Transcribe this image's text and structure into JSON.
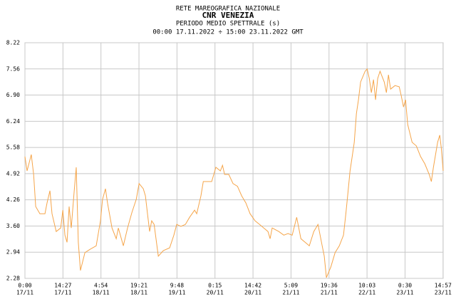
{
  "chart_data": {
    "type": "line",
    "header": "RETE MAREOGRAFICA NAZIONALE",
    "title": "CNR VENEZIA",
    "subtitle": "PERIODO MEDIO SPETTRALE (s)",
    "period": "00:00 17.11.2022 ÷ 15:00 23.11.2022 GMT",
    "xlim": [
      0,
      159
    ],
    "xticks": [
      {
        "value": 0,
        "label": [
          "0:00",
          "17/11"
        ]
      },
      {
        "value": 14.45,
        "label": [
          "14:27",
          "17/11"
        ]
      },
      {
        "value": 28.9,
        "label": [
          "4:54",
          "18/11"
        ]
      },
      {
        "value": 43.35,
        "label": [
          "19:21",
          "18/11"
        ]
      },
      {
        "value": 57.8,
        "label": [
          "9:48",
          "19/11"
        ]
      },
      {
        "value": 72.25,
        "label": [
          "0:15",
          "20/11"
        ]
      },
      {
        "value": 86.7,
        "label": [
          "14:42",
          "20/11"
        ]
      },
      {
        "value": 101.15,
        "label": [
          "5:09",
          "21/11"
        ]
      },
      {
        "value": 115.6,
        "label": [
          "19:36",
          "21/11"
        ]
      },
      {
        "value": 130.05,
        "label": [
          "10:03",
          "22/11"
        ]
      },
      {
        "value": 144.5,
        "label": [
          "0:30",
          "23/11"
        ]
      },
      {
        "value": 158.95,
        "label": [
          "14:57",
          "23/11"
        ]
      }
    ],
    "ylim": [
      2.28,
      8.22
    ],
    "yticks": [
      2.28,
      2.94,
      {
        "value": 3.6,
        "label": "3.60"
      },
      4.26,
      4.92,
      5.58,
      6.24,
      {
        "value": 6.9,
        "label": "6.90"
      },
      7.56,
      8.22
    ],
    "grid": true,
    "series": [
      {
        "color": "#f5a54a",
        "x": [
          0.0,
          0.8,
          2.4,
          3.3,
          4.1,
          5.7,
          7.6,
          8.4,
          9.5,
          10.3,
          11.9,
          13.6,
          14.4,
          15.2,
          16.0,
          16.8,
          17.6,
          18.7,
          19.5,
          20.3,
          21.1,
          22.8,
          24.7,
          27.1,
          28.7,
          29.5,
          30.6,
          31.4,
          33.1,
          34.7,
          35.5,
          37.4,
          39.0,
          40.7,
          42.3,
          43.4,
          45.0,
          45.8,
          46.6,
          47.4,
          48.2,
          49.1,
          50.7,
          52.6,
          55.0,
          56.6,
          57.7,
          59.3,
          61.0,
          62.6,
          64.5,
          65.3,
          66.9,
          67.8,
          69.4,
          71.0,
          72.6,
          74.3,
          75.1,
          75.9,
          77.5,
          79.1,
          80.8,
          82.4,
          84.0,
          85.6,
          87.5,
          89.2,
          90.8,
          92.4,
          93.2,
          94.0,
          96.5,
          98.4,
          100.0,
          101.6,
          103.3,
          104.9,
          106.5,
          108.1,
          109.8,
          111.4,
          113.0,
          113.8,
          114.6,
          116.3,
          117.9,
          119.5,
          121.1,
          122.0,
          122.8,
          123.6,
          124.4,
          125.2,
          126.0,
          126.8,
          127.6,
          129.3,
          130.1,
          130.9,
          131.7,
          132.5,
          133.3,
          134.1,
          135.0,
          136.6,
          137.4,
          138.2,
          139.0,
          140.7,
          142.3,
          143.1,
          143.9,
          144.7,
          145.5,
          147.2,
          148.8,
          150.4,
          152.0,
          153.7,
          154.5,
          155.3,
          156.9,
          157.7,
          158.3,
          159.0
        ],
        "values": [
          5.35,
          4.99,
          5.4,
          4.9,
          4.09,
          3.91,
          3.91,
          4.18,
          4.49,
          3.91,
          3.46,
          3.55,
          4.0,
          3.37,
          3.19,
          4.09,
          3.55,
          4.45,
          5.08,
          3.19,
          2.48,
          2.93,
          3.01,
          3.1,
          3.73,
          4.27,
          4.54,
          4.18,
          3.55,
          3.28,
          3.55,
          3.1,
          3.55,
          3.95,
          4.27,
          4.67,
          4.54,
          4.36,
          3.91,
          3.46,
          3.73,
          3.64,
          2.84,
          2.98,
          3.05,
          3.37,
          3.64,
          3.59,
          3.64,
          3.82,
          4.0,
          3.91,
          4.36,
          4.72,
          4.72,
          4.72,
          5.08,
          4.99,
          5.13,
          4.9,
          4.9,
          4.67,
          4.6,
          4.36,
          4.18,
          3.91,
          3.73,
          3.64,
          3.55,
          3.46,
          3.28,
          3.55,
          3.46,
          3.37,
          3.41,
          3.37,
          3.82,
          3.28,
          3.19,
          3.1,
          3.46,
          3.64,
          3.1,
          2.84,
          2.3,
          2.57,
          2.93,
          3.1,
          3.37,
          3.91,
          4.45,
          4.99,
          5.35,
          5.71,
          6.43,
          6.78,
          7.23,
          7.5,
          7.56,
          7.32,
          6.96,
          7.29,
          6.78,
          7.32,
          7.5,
          7.23,
          6.96,
          7.41,
          7.05,
          7.14,
          7.11,
          6.87,
          6.6,
          6.78,
          6.16,
          5.71,
          5.62,
          5.35,
          5.17,
          4.9,
          4.72,
          5.08,
          5.71,
          5.89,
          5.56,
          4.99
        ]
      }
    ]
  }
}
